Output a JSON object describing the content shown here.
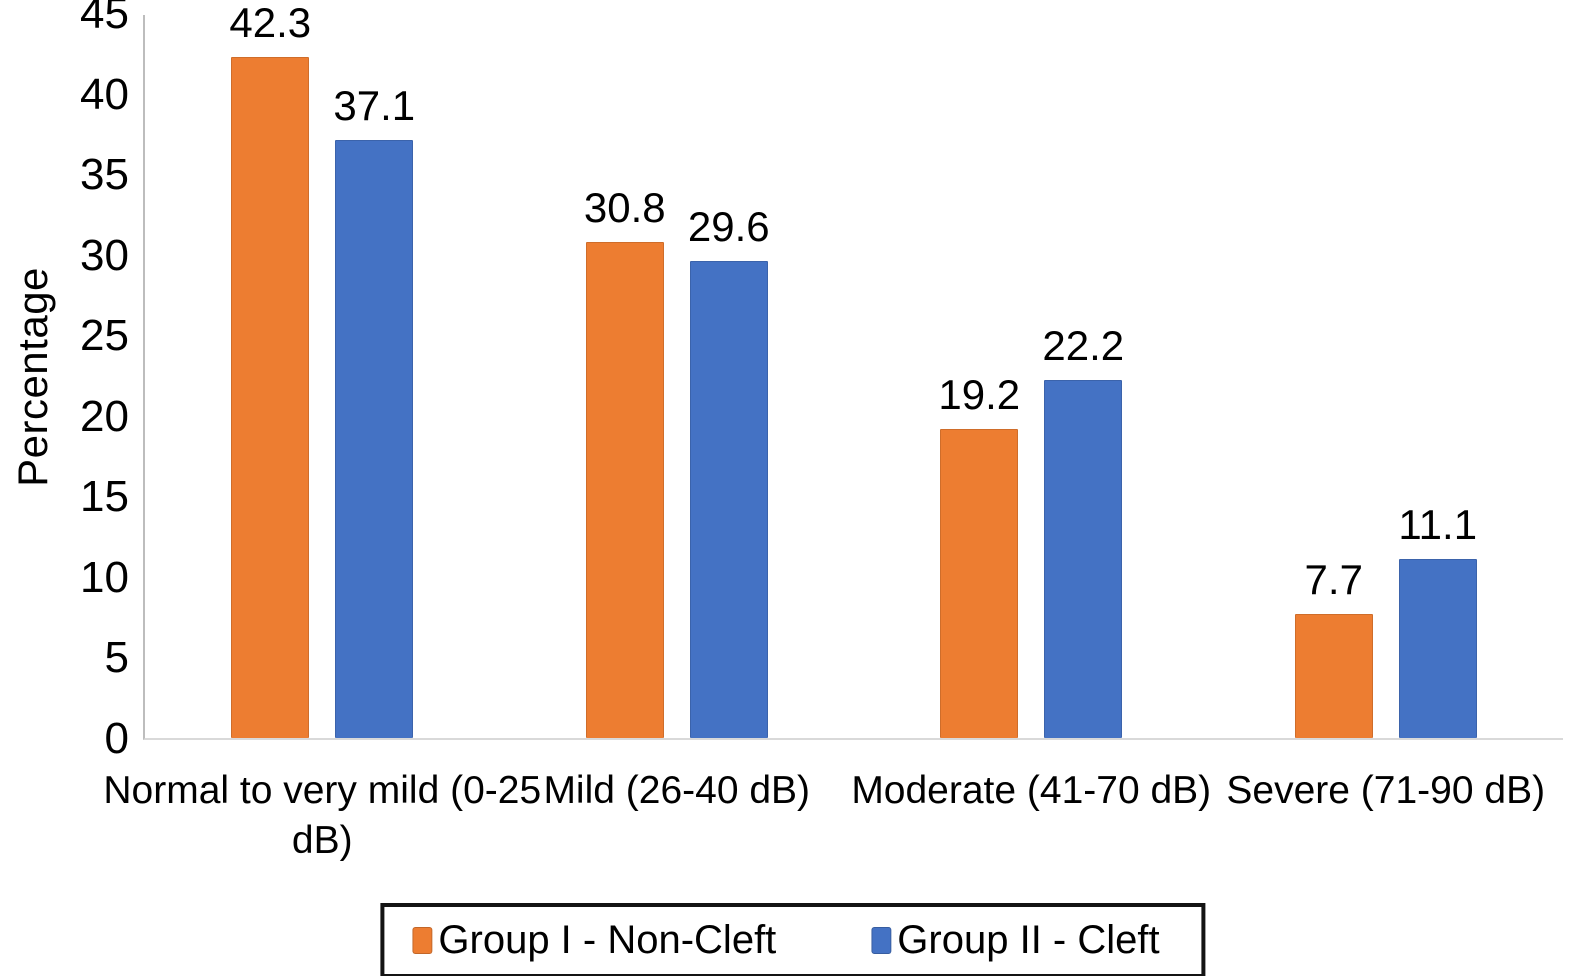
{
  "chart_data": {
    "type": "bar",
    "title": "",
    "xlabel": "",
    "ylabel": "Percentage",
    "ylim": [
      0,
      45
    ],
    "yticks": [
      0,
      5,
      10,
      15,
      20,
      25,
      30,
      35,
      40,
      45
    ],
    "grid": false,
    "legend_position": "bottom",
    "data_labels": true,
    "categories": [
      "Normal to very mild (0-25 dB)",
      "Mild (26-40 dB)",
      "Moderate (41-70 dB)",
      "Severe (71-90 dB)"
    ],
    "series": [
      {
        "name": "Group I - Non-Cleft",
        "color": "#ED7D31",
        "values": [
          42.3,
          30.8,
          19.2,
          7.7
        ]
      },
      {
        "name": "Group II - Cleft",
        "color": "#4472C4",
        "values": [
          37.1,
          29.6,
          22.2,
          11.1
        ]
      }
    ]
  },
  "colors": {
    "axis_line": "#bdbdbd",
    "baseline": "#d9d9d9",
    "text": "#000000",
    "legend_border": "#141414"
  }
}
